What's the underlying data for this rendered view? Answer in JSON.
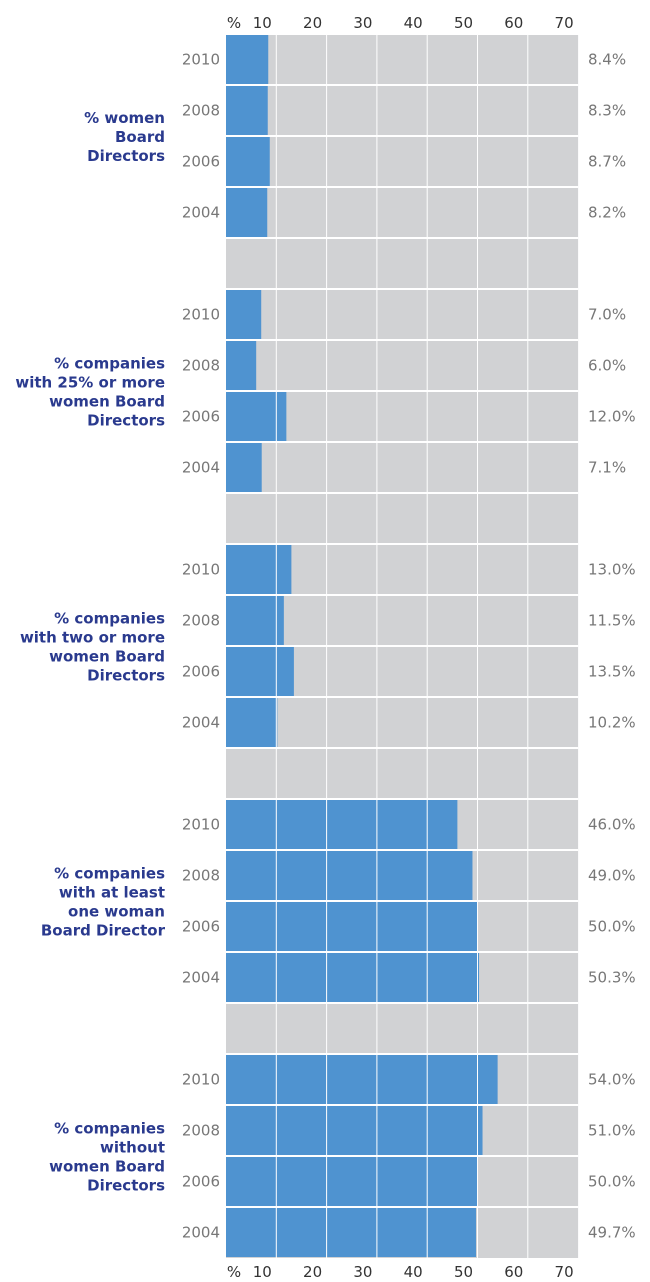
{
  "chart_data": {
    "type": "bar",
    "orientation": "horizontal",
    "axis_ticks": [
      "%",
      "10",
      "20",
      "30",
      "40",
      "50",
      "60",
      "70"
    ],
    "xlim": [
      0,
      70
    ],
    "grid": true,
    "colors": {
      "bar": "#4f93d0",
      "background": "#d1d2d4",
      "label": "#2a3a8e"
    },
    "groups": [
      {
        "label": [
          "% women",
          "Board",
          "Directors"
        ],
        "rows": [
          {
            "year": "2010",
            "value": 8.4,
            "value_label": "8.4%"
          },
          {
            "year": "2008",
            "value": 8.3,
            "value_label": "8.3%"
          },
          {
            "year": "2006",
            "value": 8.7,
            "value_label": "8.7%"
          },
          {
            "year": "2004",
            "value": 8.2,
            "value_label": "8.2%"
          }
        ]
      },
      {
        "label": [
          "% companies",
          "with 25% or more",
          "women Board",
          "Directors"
        ],
        "rows": [
          {
            "year": "2010",
            "value": 7.0,
            "value_label": "7.0%"
          },
          {
            "year": "2008",
            "value": 6.0,
            "value_label": "6.0%"
          },
          {
            "year": "2006",
            "value": 12.0,
            "value_label": "12.0%"
          },
          {
            "year": "2004",
            "value": 7.1,
            "value_label": "7.1%"
          }
        ]
      },
      {
        "label": [
          "% companies",
          "with two or more",
          "women Board",
          "Directors"
        ],
        "rows": [
          {
            "year": "2010",
            "value": 13.0,
            "value_label": "13.0%"
          },
          {
            "year": "2008",
            "value": 11.5,
            "value_label": "11.5%"
          },
          {
            "year": "2006",
            "value": 13.5,
            "value_label": "13.5%"
          },
          {
            "year": "2004",
            "value": 10.2,
            "value_label": "10.2%"
          }
        ]
      },
      {
        "label": [
          "% companies",
          "with at least",
          "one woman",
          "Board Director"
        ],
        "rows": [
          {
            "year": "2010",
            "value": 46.0,
            "value_label": "46.0%"
          },
          {
            "year": "2008",
            "value": 49.0,
            "value_label": "49.0%"
          },
          {
            "year": "2006",
            "value": 50.0,
            "value_label": "50.0%"
          },
          {
            "year": "2004",
            "value": 50.3,
            "value_label": "50.3%"
          }
        ]
      },
      {
        "label": [
          "% companies",
          "without",
          "women Board",
          "Directors"
        ],
        "rows": [
          {
            "year": "2010",
            "value": 54.0,
            "value_label": "54.0%"
          },
          {
            "year": "2008",
            "value": 51.0,
            "value_label": "51.0%"
          },
          {
            "year": "2006",
            "value": 50.0,
            "value_label": "50.0%"
          },
          {
            "year": "2004",
            "value": 49.7,
            "value_label": "49.7%"
          }
        ]
      }
    ]
  }
}
